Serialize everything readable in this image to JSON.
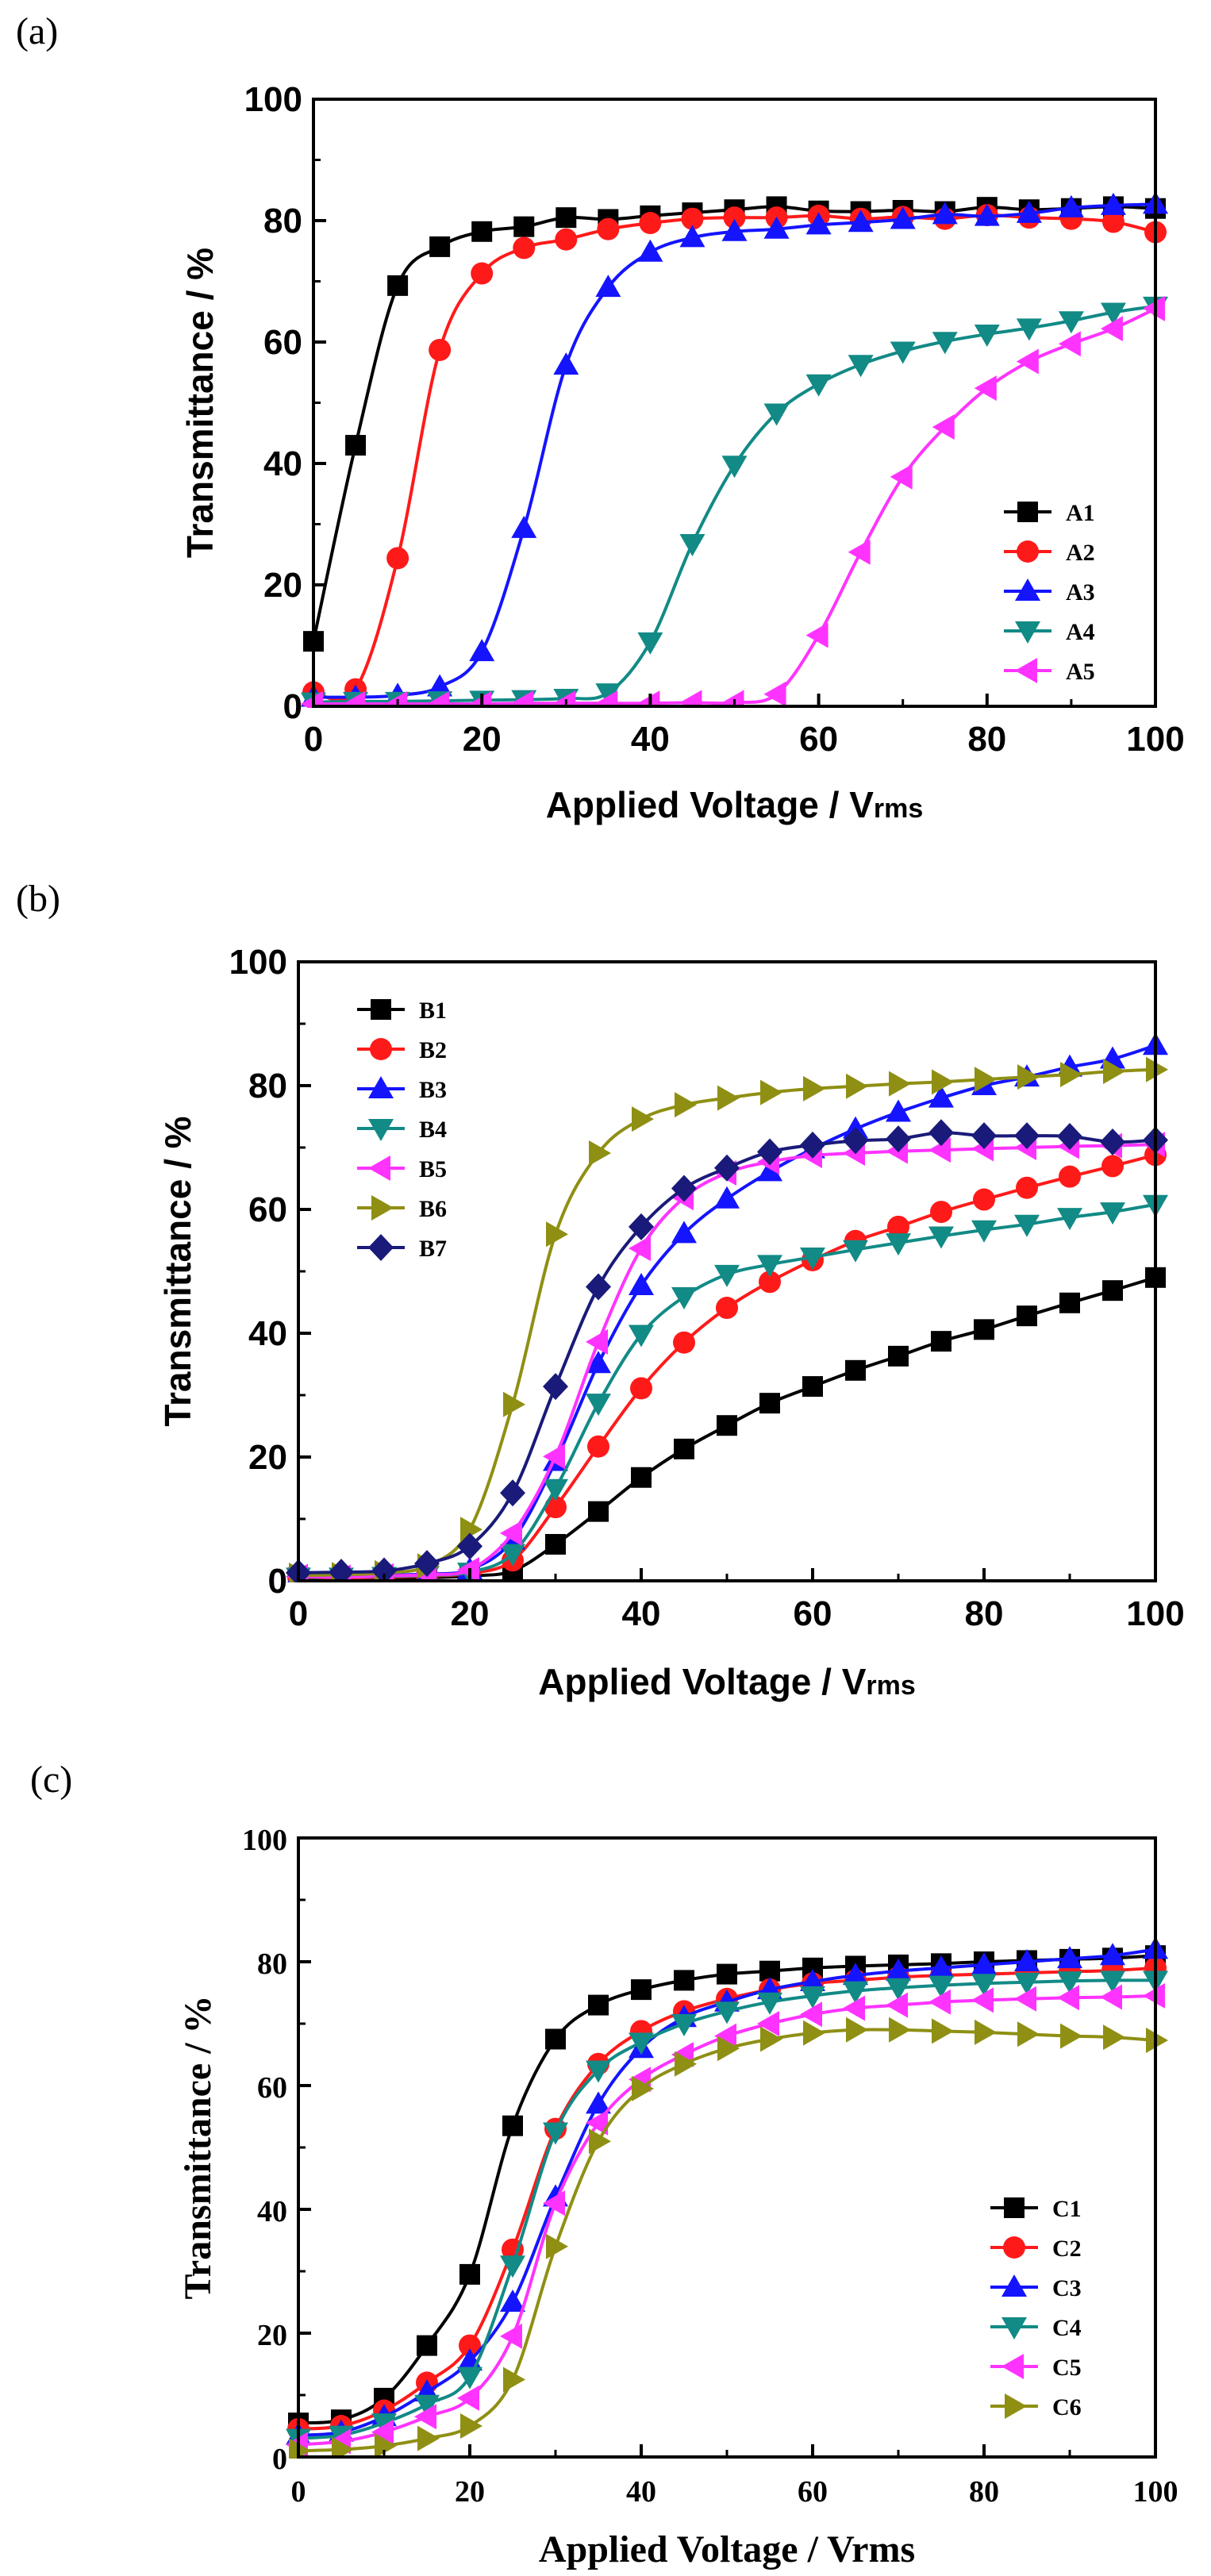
{
  "colors": {
    "black": "#000000",
    "red": "#ff1a1a",
    "blue": "#1414ff",
    "teal": "#128a86",
    "magenta": "#ff33ff",
    "olive": "#8f8f14",
    "navy": "#1a1a7a"
  },
  "chart_data": [
    {
      "type": "line",
      "panel_label": "(a)",
      "title": "",
      "xlabel": "Applied Voltage / V",
      "xlabel_sub": "rms",
      "ylabel": "Transmittance / %",
      "xlim": [
        0,
        100
      ],
      "ylim": [
        0,
        100
      ],
      "xticks": [
        "0",
        "20",
        "40",
        "60",
        "80",
        "100"
      ],
      "yticks": [
        "0",
        "20",
        "40",
        "60",
        "80",
        "100"
      ],
      "legend_position": "bottom-right",
      "series": [
        {
          "name": "A1",
          "color": "#000000",
          "marker": "square",
          "x": [
            0,
            5,
            10,
            15,
            20,
            25,
            30,
            35,
            40,
            45,
            50,
            55,
            60,
            65,
            70,
            75,
            80,
            85,
            90,
            95,
            100
          ],
          "y": [
            10.7,
            43,
            69.3,
            75.7,
            78.2,
            79,
            80.5,
            80.2,
            80.8,
            81.3,
            81.8,
            82.3,
            81.6,
            81.5,
            81.7,
            81.5,
            82.2,
            81.8,
            82,
            82.3,
            82
          ]
        },
        {
          "name": "A2",
          "color": "#ff1a1a",
          "marker": "circle",
          "x": [
            0,
            5,
            10,
            15,
            20,
            25,
            30,
            35,
            40,
            45,
            50,
            55,
            60,
            65,
            70,
            75,
            80,
            85,
            90,
            95,
            100
          ],
          "y": [
            2.3,
            2.8,
            24.4,
            58.7,
            71.3,
            75.5,
            76.9,
            78.6,
            79.6,
            80.3,
            80.5,
            80.5,
            80.8,
            80.3,
            80.6,
            80.3,
            80.9,
            80.5,
            80.3,
            79.8,
            78.1
          ]
        },
        {
          "name": "A3",
          "color": "#1414ff",
          "marker": "triangle-up",
          "x": [
            0,
            5,
            10,
            15,
            20,
            25,
            30,
            35,
            40,
            45,
            50,
            55,
            60,
            65,
            70,
            75,
            80,
            85,
            90,
            95,
            100
          ],
          "y": [
            1.5,
            1.5,
            1.8,
            3.2,
            9,
            29.3,
            56.2,
            69,
            74.8,
            77.2,
            78.2,
            78.6,
            79.3,
            79.7,
            80.2,
            81,
            80.7,
            81.2,
            82.1,
            82.5,
            82.7
          ]
        },
        {
          "name": "A4",
          "color": "#128a86",
          "marker": "triangle-down",
          "x": [
            0,
            5,
            10,
            15,
            20,
            25,
            30,
            35,
            40,
            45,
            50,
            55,
            60,
            65,
            70,
            75,
            80,
            85,
            90,
            95,
            100
          ],
          "y": [
            0.7,
            0.8,
            0.8,
            0.9,
            1,
            1.1,
            1.3,
            2.2,
            10.6,
            26.8,
            39.7,
            48.3,
            53.1,
            56.3,
            58.5,
            60.1,
            61.3,
            62.3,
            63.5,
            64.9,
            65.9
          ]
        },
        {
          "name": "A5",
          "color": "#ff33ff",
          "marker": "triangle-left",
          "x": [
            0,
            5,
            10,
            15,
            20,
            25,
            30,
            35,
            40,
            45,
            50,
            55,
            60,
            65,
            70,
            75,
            80,
            85,
            90,
            95,
            100
          ],
          "y": [
            0.4,
            0.4,
            0.4,
            0.4,
            0.4,
            0.5,
            0.5,
            0.5,
            0.5,
            0.6,
            0.6,
            2,
            11.7,
            25.4,
            37.8,
            46,
            52.4,
            56.8,
            59.7,
            62.2,
            65.5
          ]
        }
      ]
    },
    {
      "type": "line",
      "panel_label": "(b)",
      "title": "",
      "xlabel": "Applied Voltage / V",
      "xlabel_sub": "rms",
      "ylabel": "Transmittance / %",
      "xlim": [
        0,
        100
      ],
      "ylim": [
        0,
        100
      ],
      "xticks": [
        "0",
        "20",
        "40",
        "60",
        "80",
        "100"
      ],
      "yticks": [
        "0",
        "20",
        "40",
        "60",
        "80",
        "100"
      ],
      "legend_position": "top-left",
      "series": [
        {
          "name": "B1",
          "color": "#000000",
          "marker": "square",
          "x": [
            0,
            5,
            10,
            15,
            20,
            25,
            30,
            35,
            40,
            45,
            50,
            55,
            60,
            65,
            70,
            75,
            80,
            85,
            90,
            95,
            100
          ],
          "y": [
            0.5,
            0.4,
            0.5,
            0.5,
            0.8,
            1.6,
            5.9,
            11.2,
            16.7,
            21.3,
            25.1,
            28.7,
            31.4,
            34,
            36.3,
            38.7,
            40.6,
            42.8,
            44.9,
            46.9,
            49
          ]
        },
        {
          "name": "B2",
          "color": "#ff1a1a",
          "marker": "circle",
          "x": [
            0,
            5,
            10,
            15,
            20,
            25,
            30,
            35,
            40,
            45,
            50,
            55,
            60,
            65,
            70,
            75,
            80,
            85,
            90,
            95,
            100
          ],
          "y": [
            0.6,
            0.5,
            0.6,
            0.8,
            1.2,
            3.3,
            11.9,
            21.7,
            31.1,
            38.5,
            44.1,
            48.3,
            51.8,
            54.9,
            57.2,
            59.6,
            61.6,
            63.5,
            65.3,
            67,
            68.8
          ]
        },
        {
          "name": "B3",
          "color": "#1414ff",
          "marker": "triangle-up",
          "x": [
            0,
            5,
            10,
            15,
            20,
            25,
            30,
            35,
            40,
            45,
            50,
            55,
            60,
            65,
            70,
            75,
            80,
            85,
            90,
            95,
            100
          ],
          "y": [
            0.8,
            0.7,
            0.9,
            1.1,
            1.8,
            6.6,
            19.3,
            35.1,
            47.7,
            56.1,
            61.7,
            66.1,
            69.8,
            73,
            75.7,
            78,
            80,
            81.4,
            83,
            84.3,
            86.5
          ]
        },
        {
          "name": "B4",
          "color": "#128a86",
          "marker": "triangle-down",
          "x": [
            0,
            5,
            10,
            15,
            20,
            25,
            30,
            35,
            40,
            45,
            50,
            55,
            60,
            65,
            70,
            75,
            80,
            85,
            90,
            95,
            100
          ],
          "y": [
            0.6,
            0.6,
            0.7,
            0.9,
            1.4,
            4.4,
            14.9,
            28.7,
            39.8,
            45.9,
            49.5,
            51.1,
            52.3,
            53.5,
            54.6,
            55.7,
            56.7,
            57.6,
            58.7,
            59.6,
            60.8
          ]
        },
        {
          "name": "B5",
          "color": "#ff33ff",
          "marker": "triangle-left",
          "x": [
            0,
            5,
            10,
            15,
            20,
            25,
            30,
            35,
            40,
            45,
            50,
            55,
            60,
            65,
            70,
            75,
            80,
            85,
            90,
            95,
            100
          ],
          "y": [
            0.7,
            0.6,
            0.8,
            1,
            1.8,
            7.7,
            20.1,
            38.6,
            53.7,
            61.9,
            65.9,
            67.7,
            68.7,
            69.1,
            69.4,
            69.6,
            69.8,
            70,
            70.2,
            70.3,
            70.5
          ]
        },
        {
          "name": "B6",
          "color": "#8f8f14",
          "marker": "triangle-right",
          "x": [
            0,
            5,
            10,
            15,
            20,
            25,
            30,
            35,
            40,
            45,
            50,
            55,
            60,
            65,
            70,
            75,
            80,
            85,
            90,
            95,
            100
          ],
          "y": [
            0.9,
            1,
            1.3,
            2.4,
            8.3,
            28.5,
            56,
            69.1,
            74.6,
            76.9,
            78,
            78.9,
            79.5,
            79.9,
            80.3,
            80.6,
            81,
            81.4,
            81.8,
            82.3,
            82.6
          ]
        },
        {
          "name": "B7",
          "color": "#1a1a7a",
          "marker": "diamond",
          "x": [
            0,
            5,
            10,
            15,
            20,
            25,
            30,
            35,
            40,
            45,
            50,
            55,
            60,
            65,
            70,
            75,
            80,
            85,
            90,
            95,
            100
          ],
          "y": [
            1.3,
            1.4,
            1.6,
            2.8,
            5.6,
            14.2,
            31.4,
            47.5,
            57.2,
            63.4,
            66.7,
            69.3,
            70.4,
            71.1,
            71.4,
            72.4,
            71.9,
            71.9,
            71.8,
            70.9,
            71.2
          ]
        }
      ]
    },
    {
      "type": "line",
      "panel_label": "(c)",
      "title": "",
      "xlabel": "Applied Voltage / Vrms",
      "ylabel": "Transmittance / %",
      "xlim": [
        0,
        100
      ],
      "ylim": [
        0,
        100
      ],
      "xticks": [
        "0",
        "20",
        "40",
        "60",
        "80",
        "100"
      ],
      "yticks": [
        "0",
        "20",
        "40",
        "60",
        "80",
        "100"
      ],
      "legend_position": "bottom-right",
      "series": [
        {
          "name": "C1",
          "color": "#000000",
          "marker": "square",
          "x": [
            0,
            5,
            10,
            15,
            20,
            25,
            30,
            35,
            40,
            45,
            50,
            55,
            60,
            65,
            70,
            75,
            80,
            85,
            90,
            95,
            100
          ],
          "y": [
            5.5,
            6,
            9.5,
            18,
            29.5,
            53.5,
            67.5,
            73,
            75.5,
            77,
            78,
            78.5,
            79,
            79.3,
            79.5,
            79.7,
            80,
            80.2,
            80.4,
            80.6,
            81
          ]
        },
        {
          "name": "C2",
          "color": "#ff1a1a",
          "marker": "circle",
          "x": [
            0,
            5,
            10,
            15,
            20,
            25,
            30,
            35,
            40,
            45,
            50,
            55,
            60,
            65,
            70,
            75,
            80,
            85,
            90,
            95,
            100
          ],
          "y": [
            4.5,
            5,
            7.5,
            12,
            18,
            33.5,
            53,
            63.5,
            68.8,
            72,
            74,
            75.5,
            76.5,
            77,
            77.5,
            77.8,
            78,
            78.2,
            78.4,
            78.6,
            79
          ]
        },
        {
          "name": "C3",
          "color": "#1414ff",
          "marker": "triangle-up",
          "x": [
            0,
            5,
            10,
            15,
            20,
            25,
            30,
            35,
            40,
            45,
            50,
            55,
            60,
            65,
            70,
            75,
            80,
            85,
            90,
            95,
            100
          ],
          "y": [
            3.5,
            4,
            6.5,
            10.5,
            15.5,
            25,
            42,
            57,
            66,
            71,
            73.5,
            75.5,
            76.8,
            77.8,
            78.5,
            79,
            79.5,
            80,
            80.5,
            81,
            82
          ]
        },
        {
          "name": "C4",
          "color": "#128a86",
          "marker": "triangle-down",
          "x": [
            0,
            5,
            10,
            15,
            20,
            25,
            30,
            35,
            40,
            45,
            50,
            55,
            60,
            65,
            70,
            75,
            80,
            85,
            90,
            95,
            100
          ],
          "y": [
            3,
            3.5,
            5.5,
            8.5,
            13,
            31,
            52.5,
            62.5,
            67,
            70,
            72,
            73.5,
            74.5,
            75.3,
            75.8,
            76.2,
            76.5,
            76.7,
            76.9,
            77,
            77
          ]
        },
        {
          "name": "C5",
          "color": "#ff33ff",
          "marker": "triangle-left",
          "x": [
            0,
            5,
            10,
            15,
            20,
            25,
            30,
            35,
            40,
            45,
            50,
            55,
            60,
            65,
            70,
            75,
            80,
            85,
            90,
            95,
            100
          ],
          "y": [
            2,
            2.5,
            4,
            6.5,
            9.5,
            19.5,
            41,
            54,
            61,
            65,
            68,
            70,
            71.5,
            72.5,
            73,
            73.5,
            73.8,
            74,
            74.2,
            74.3,
            74.5
          ]
        },
        {
          "name": "C6",
          "color": "#8f8f14",
          "marker": "triangle-right",
          "x": [
            0,
            5,
            10,
            15,
            20,
            25,
            30,
            35,
            40,
            45,
            50,
            55,
            60,
            65,
            70,
            75,
            80,
            85,
            90,
            95,
            100
          ],
          "y": [
            1,
            1.2,
            1.8,
            3,
            5,
            12.5,
            34,
            51,
            59.5,
            63.5,
            66,
            67.5,
            68.5,
            69,
            69,
            68.8,
            68.6,
            68.3,
            68,
            67.8,
            67.3
          ]
        }
      ]
    }
  ]
}
